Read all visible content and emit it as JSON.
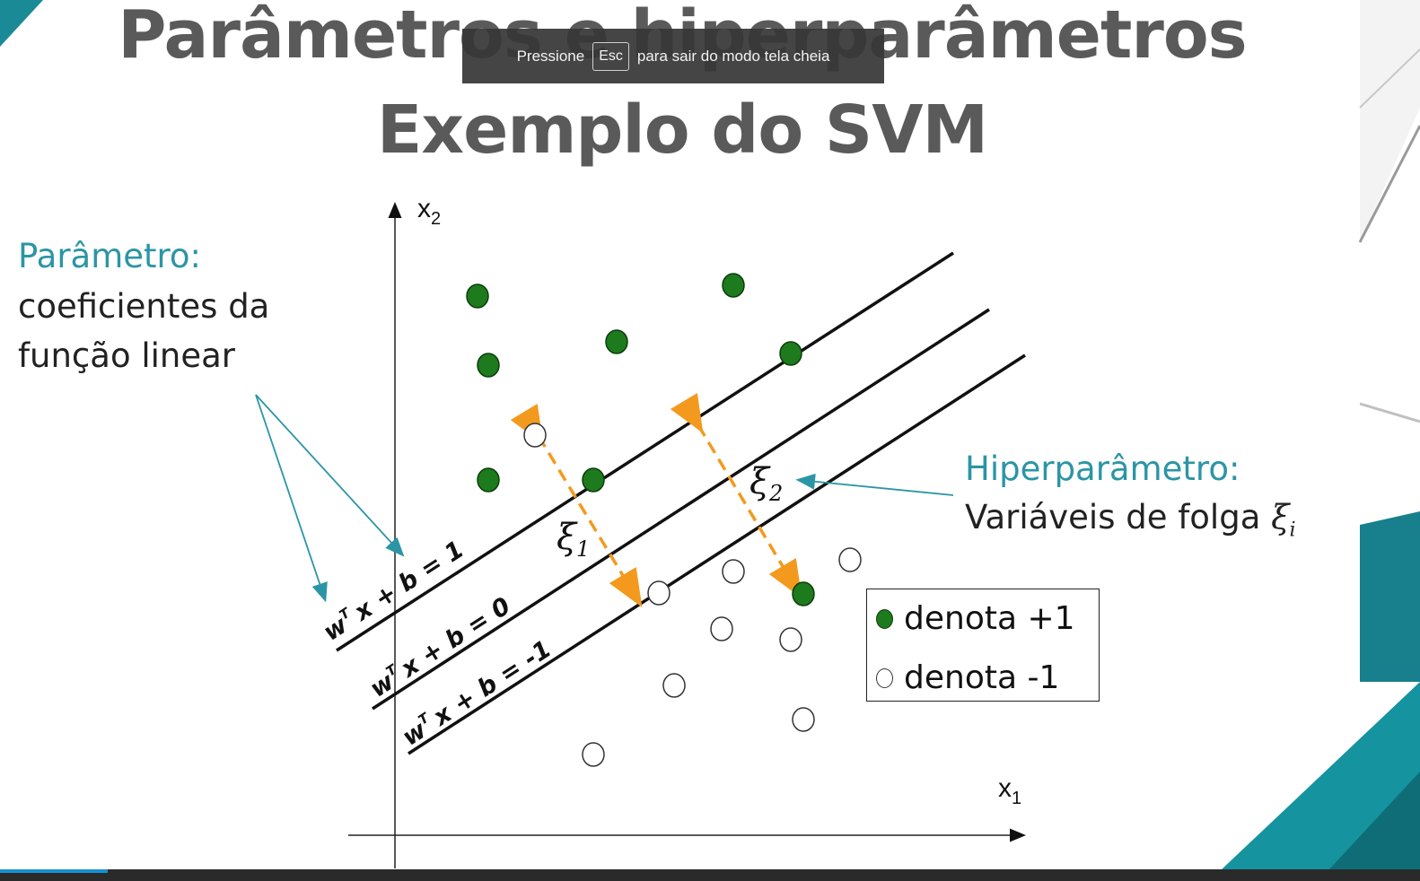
{
  "slide": {
    "title_line1": "Parâmetros e hiperparâmetros",
    "title_line2": "Exemplo do SVM"
  },
  "fullscreen_notice": {
    "before": "Pressione",
    "key": "Esc",
    "after": "para sair do modo tela cheia"
  },
  "parameter_note": {
    "heading": "Parâmetro:",
    "line1": "coeficientes da",
    "line2": "função linear"
  },
  "hyperparameter_note": {
    "heading": "Hiperparâmetro:",
    "text": "Variáveis de folga",
    "symbol": "ξ",
    "subscript": "i"
  },
  "legend": {
    "positive": "denota +1",
    "negative": "denota -1"
  },
  "axes": {
    "x_label": "x",
    "x_sub": "1",
    "y_label": "x",
    "y_sub": "2"
  },
  "lines": {
    "plus": "x + b = 1",
    "zero": "x + b = 0",
    "minus": "x + b = -1",
    "w": "w",
    "T": "T"
  },
  "slack": {
    "symbol": "ξ",
    "first": "1",
    "second": "2"
  },
  "colors": {
    "title": "#5a5a5a",
    "accent_teal": "#2b95a5",
    "positive_point": "#1d7a1d",
    "slack_arrow": "#f39a1e"
  },
  "icons": {
    "positive_marker": "filled-green-circle",
    "negative_marker": "hollow-circle"
  }
}
